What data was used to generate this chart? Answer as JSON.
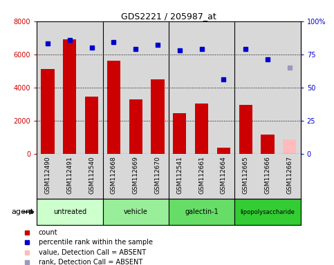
{
  "title": "GDS2221 / 205987_at",
  "samples": [
    "GSM112490",
    "GSM112491",
    "GSM112540",
    "GSM112668",
    "GSM112669",
    "GSM112670",
    "GSM112541",
    "GSM112661",
    "GSM112664",
    "GSM112665",
    "GSM112666",
    "GSM112667"
  ],
  "counts": [
    5100,
    6900,
    3450,
    5600,
    3300,
    4500,
    2450,
    3050,
    350,
    2950,
    1150,
    null
  ],
  "percentile_ranks": [
    83,
    86,
    80,
    84,
    79,
    82,
    78,
    79,
    56,
    79,
    71,
    null
  ],
  "absent_value": [
    null,
    null,
    null,
    null,
    null,
    null,
    null,
    null,
    null,
    null,
    null,
    850
  ],
  "absent_rank": [
    null,
    null,
    null,
    null,
    null,
    null,
    null,
    null,
    null,
    null,
    null,
    65
  ],
  "agents": [
    {
      "label": "untreated",
      "start": 0,
      "end": 3,
      "color": "#ccffcc"
    },
    {
      "label": "vehicle",
      "start": 3,
      "end": 6,
      "color": "#99ee99"
    },
    {
      "label": "galectin-1",
      "start": 6,
      "end": 9,
      "color": "#66dd66"
    },
    {
      "label": "lipopolysaccharide",
      "start": 9,
      "end": 12,
      "color": "#33cc33"
    }
  ],
  "bar_color": "#cc0000",
  "absent_bar_color": "#ffbbbb",
  "rank_color": "#0000cc",
  "absent_rank_color": "#9999bb",
  "ylim_left": [
    0,
    8000
  ],
  "ylim_right": [
    0,
    100
  ],
  "yticks_left": [
    0,
    2000,
    4000,
    6000,
    8000
  ],
  "yticks_right": [
    0,
    25,
    50,
    75,
    100
  ],
  "background_color": "#d8d8d8",
  "legend_items": [
    {
      "label": "count",
      "color": "#cc0000"
    },
    {
      "label": "percentile rank within the sample",
      "color": "#0000cc"
    },
    {
      "label": "value, Detection Call = ABSENT",
      "color": "#ffbbbb"
    },
    {
      "label": "rank, Detection Call = ABSENT",
      "color": "#9999bb"
    }
  ],
  "group_boundaries": [
    3,
    6,
    9
  ],
  "n": 12
}
